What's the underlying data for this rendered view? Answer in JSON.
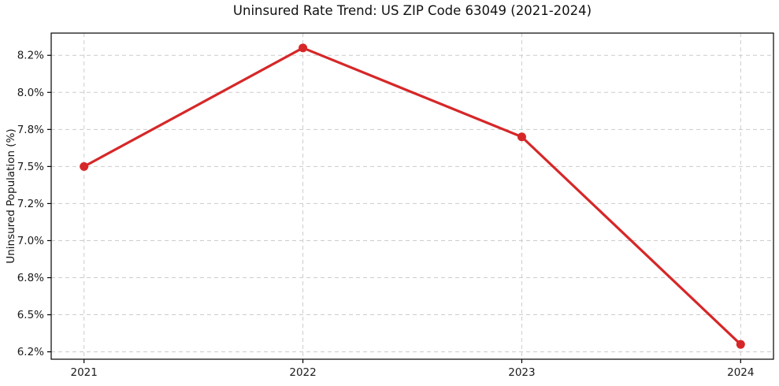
{
  "title": "Uninsured Rate Trend: US ZIP Code 63049 (2021-2024)",
  "ylabel": "Uninsured Population (%)",
  "colors": {
    "line": "#d62728",
    "grid": "#cccccc",
    "spine": "#000000",
    "text": "#1a1a1a",
    "background": "#ffffff"
  },
  "chart_data": {
    "type": "line",
    "title": "Uninsured Rate Trend: US ZIP Code 63049 (2021-2024)",
    "xlabel": "",
    "ylabel": "Uninsured Population (%)",
    "x": [
      2021,
      2022,
      2023,
      2024
    ],
    "series": [
      {
        "name": "Uninsured Rate",
        "values": [
          7.5,
          8.3,
          7.7,
          6.3
        ]
      }
    ],
    "xlim": [
      2020.85,
      2024.15
    ],
    "ylim": [
      6.2,
      8.4
    ],
    "x_ticks": {
      "values": [
        2021,
        2022,
        2023,
        2024
      ],
      "labels": [
        "2021",
        "2022",
        "2023",
        "2024"
      ]
    },
    "y_ticks": {
      "values": [
        6.25,
        6.5,
        6.75,
        7.0,
        7.25,
        7.5,
        7.75,
        8.0,
        8.25
      ],
      "labels": [
        "6.2%",
        "6.5%",
        "6.8%",
        "7.0%",
        "7.2%",
        "7.5%",
        "7.8%",
        "8.0%",
        "8.2%"
      ]
    },
    "grid": true,
    "grid_dash": "5 4",
    "legend": false,
    "marker": "circle",
    "line_width": 3.2,
    "marker_radius": 5.5
  }
}
